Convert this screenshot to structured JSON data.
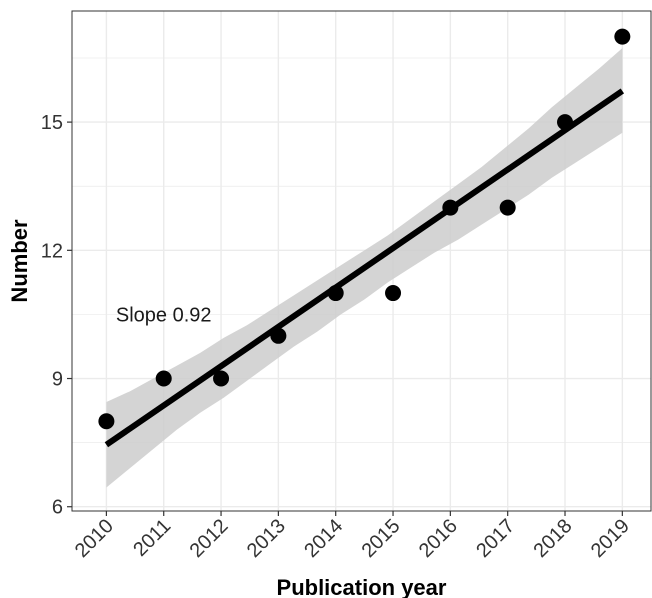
{
  "chart_data": {
    "type": "scatter",
    "title": "",
    "xlabel": "Publication year",
    "ylabel": "Number",
    "x": [
      2010,
      2011,
      2012,
      2013,
      2014,
      2015,
      2016,
      2017,
      2018,
      2019
    ],
    "series": [
      {
        "values": [
          8,
          9,
          9,
          10,
          11,
          11,
          13,
          13,
          15,
          17
        ]
      }
    ],
    "trend_line": {
      "x": [
        2010,
        2019
      ],
      "y": [
        7.45,
        15.73
      ],
      "ci_lower": [
        6.45,
        6.9,
        7.35,
        7.8,
        8.2,
        8.55,
        8.95,
        9.35,
        9.75,
        10.1,
        10.5,
        10.85,
        11.25,
        11.6,
        11.95,
        12.25,
        12.6,
        12.95,
        13.3,
        13.7,
        14.05,
        14.4,
        14.75
      ],
      "ci_upper": [
        8.45,
        8.7,
        9.0,
        9.3,
        9.6,
        9.95,
        10.25,
        10.6,
        10.95,
        11.3,
        11.65,
        12.0,
        12.35,
        12.75,
        13.15,
        13.55,
        13.95,
        14.4,
        14.85,
        15.35,
        15.8,
        16.25,
        16.73
      ],
      "ci_x_start": 2010,
      "ci_x_end": 2019
    },
    "annotation": {
      "text": "Slope 0.92",
      "x": 2011,
      "y": 10.5
    },
    "x_ticks": [
      "2010",
      "2011",
      "2012",
      "2013",
      "2014",
      "2015",
      "2016",
      "2017",
      "2018",
      "2019"
    ],
    "y_ticks": [
      6,
      9,
      12,
      15
    ],
    "xlim": [
      2009.4,
      2019.5
    ],
    "ylim": [
      5.9,
      17.6
    ],
    "grid": true,
    "legend": "none",
    "colors": {
      "points": "#000000",
      "line": "#000000",
      "ribbon": "#cccccc",
      "grid": "#ebebeb",
      "axis": "#333333"
    }
  }
}
